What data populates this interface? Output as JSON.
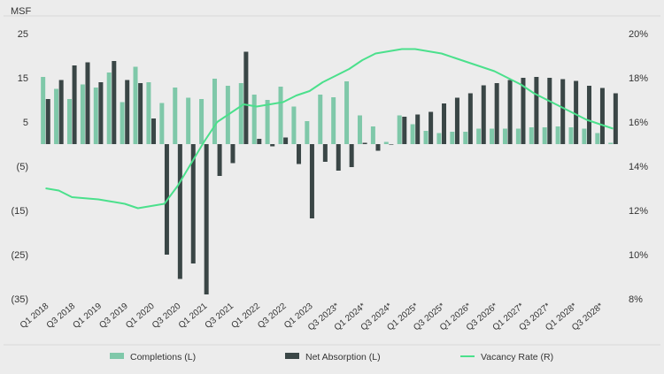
{
  "chart_data": {
    "type": "bar",
    "ylabel_left": "MSF",
    "left_axis": {
      "min": -35,
      "max": 25,
      "ticks": [
        "25",
        "15",
        "5",
        "(5)",
        "(15)",
        "(25)",
        "(35)"
      ]
    },
    "right_axis": {
      "min": 8,
      "max": 20,
      "ticks": [
        "20%",
        "18%",
        "16%",
        "14%",
        "12%",
        "10%",
        "8%"
      ]
    },
    "tick_labels": [
      "Q1 2018",
      "Q3 2018",
      "Q1 2019",
      "Q3 2019",
      "Q1 2020",
      "Q3 2020",
      "Q1 2021",
      "Q3 2021",
      "Q1 2022",
      "Q3 2022",
      "Q1 2023",
      "Q3 2023*",
      "Q1 2024*",
      "Q3 2024*",
      "Q1 2025*",
      "Q3 2025*",
      "Q1 2026*",
      "Q3 2026*",
      "Q1 2027*",
      "Q3 2027*",
      "Q1 2028*",
      "Q3 2028*"
    ],
    "categories": [
      "Q1 2018",
      "Q2 2018",
      "Q3 2018",
      "Q4 2018",
      "Q1 2019",
      "Q2 2019",
      "Q3 2019",
      "Q4 2019",
      "Q1 2020",
      "Q2 2020",
      "Q3 2020",
      "Q4 2020",
      "Q1 2021",
      "Q2 2021",
      "Q3 2021",
      "Q4 2021",
      "Q1 2022",
      "Q2 2022",
      "Q3 2022",
      "Q4 2022",
      "Q1 2023",
      "Q2 2023",
      "Q3 2023*",
      "Q4 2023*",
      "Q1 2024*",
      "Q2 2024*",
      "Q3 2024*",
      "Q4 2024*",
      "Q1 2025*",
      "Q2 2025*",
      "Q3 2025*",
      "Q4 2025*",
      "Q1 2026*",
      "Q2 2026*",
      "Q3 2026*",
      "Q4 2026*",
      "Q1 2027*",
      "Q2 2027*",
      "Q3 2027*",
      "Q4 2027*",
      "Q1 2028*",
      "Q2 2028*",
      "Q3 2028*",
      "Q4 2028*"
    ],
    "series": [
      {
        "name": "Completions (L)",
        "axis": "left",
        "kind": "bar",
        "color": "#7fc8a9",
        "values": [
          15.2,
          12.5,
          10.2,
          13.5,
          12.8,
          16.2,
          9.5,
          17.5,
          14,
          9.3,
          12.8,
          10.5,
          10.2,
          14.8,
          13.2,
          13.8,
          11.2,
          10,
          13,
          8.5,
          5.2,
          11.2,
          10.6,
          14.2,
          6.5,
          4,
          0.5,
          6.5,
          4.5,
          3,
          2.5,
          2.8,
          2.8,
          3.5,
          3.5,
          3.5,
          3.5,
          3.8,
          3.8,
          4,
          3.8,
          3.5,
          2.5,
          0.3
        ]
      },
      {
        "name": "Net Absorption (L)",
        "axis": "left",
        "kind": "bar",
        "color": "#3a4646",
        "values": [
          10.2,
          14.5,
          17.8,
          18.5,
          14,
          18.8,
          14.5,
          13.8,
          5.8,
          -25,
          -30.5,
          -27,
          -34,
          -7.2,
          -4.3,
          20.9,
          1.2,
          -0.5,
          1.5,
          -4.5,
          -16.8,
          -4,
          -6,
          -5.2,
          0.3,
          -1.5,
          0,
          6.2,
          6.7,
          7.3,
          9.2,
          10.5,
          11.5,
          13.3,
          13.8,
          14.5,
          15,
          15.2,
          15,
          14.7,
          14.3,
          13.2,
          12.7,
          11.5
        ]
      },
      {
        "name": "Vacancy Rate (R)",
        "axis": "right",
        "kind": "line",
        "color": "#4be08c",
        "values": [
          13,
          12.9,
          12.6,
          12.55,
          12.5,
          12.4,
          12.3,
          12.1,
          12.2,
          12.3,
          13.1,
          14.1,
          15.1,
          16.0,
          16.4,
          16.8,
          16.7,
          16.8,
          16.9,
          17.2,
          17.4,
          17.8,
          18.1,
          18.4,
          18.8,
          19.1,
          19.2,
          19.3,
          19.3,
          19.2,
          19.1,
          18.9,
          18.7,
          18.5,
          18.3,
          18.0,
          17.7,
          17.3,
          17.0,
          16.7,
          16.4,
          16.1,
          15.9,
          15.7
        ]
      }
    ],
    "legend_position": "bottom"
  }
}
